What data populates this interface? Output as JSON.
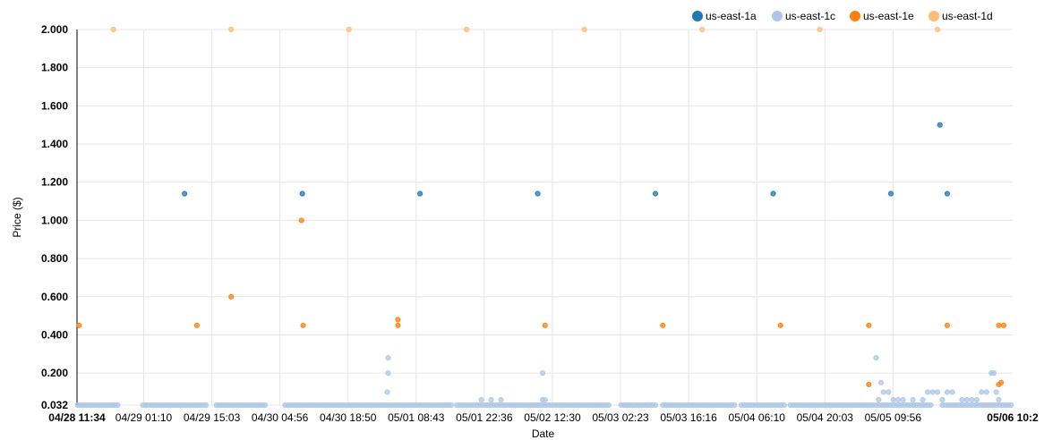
{
  "chart_data": {
    "type": "scatter",
    "xlabel": "Date",
    "ylabel": "Price ($)",
    "ylim": [
      0.032,
      2.0
    ],
    "y_ticks": [
      "0.032",
      "0.200",
      "0.400",
      "0.600",
      "0.800",
      "1.000",
      "1.200",
      "1.400",
      "1.600",
      "1.800",
      "2.000"
    ],
    "y_tick_values": [
      0.032,
      0.2,
      0.4,
      0.6,
      0.8,
      1.0,
      1.2,
      1.4,
      1.6,
      1.8,
      2.0
    ],
    "xlim": [
      "2015-04-28 11:34",
      "2015-05-06 10:20"
    ],
    "x_ticks": [
      {
        "label": "04/28 11:34",
        "t": "2015-04-28 11:34",
        "bold": true
      },
      {
        "label": "04/29 01:10",
        "t": "2015-04-29 01:10"
      },
      {
        "label": "04/29 15:03",
        "t": "2015-04-29 15:03"
      },
      {
        "label": "04/30 04:56",
        "t": "2015-04-30 04:56"
      },
      {
        "label": "04/30 18:50",
        "t": "2015-04-30 18:50"
      },
      {
        "label": "05/01 08:43",
        "t": "2015-05-01 08:43"
      },
      {
        "label": "05/01 22:36",
        "t": "2015-05-01 22:36"
      },
      {
        "label": "05/02 12:30",
        "t": "2015-05-02 12:30"
      },
      {
        "label": "05/03 02:23",
        "t": "2015-05-03 02:23"
      },
      {
        "label": "05/03 16:16",
        "t": "2015-05-03 16:16"
      },
      {
        "label": "05/04 06:10",
        "t": "2015-05-04 06:10"
      },
      {
        "label": "05/04 20:03",
        "t": "2015-05-04 20:03"
      },
      {
        "label": "05/05 09:56",
        "t": "2015-05-05 09:56"
      },
      {
        "label": "05/06 10:2",
        "t": "2015-05-06 10:20",
        "bold": true
      }
    ],
    "grid": true,
    "legend_position": "top-right",
    "series": [
      {
        "name": "us-east-1a",
        "color": "#1f77b4",
        "points": [
          [
            "2015-04-29 09:30",
            1.14
          ],
          [
            "2015-04-30 09:30",
            1.14
          ],
          [
            "2015-05-01 09:30",
            1.14
          ],
          [
            "2015-05-02 09:30",
            1.14
          ],
          [
            "2015-05-03 09:30",
            1.14
          ],
          [
            "2015-05-04 09:30",
            1.14
          ],
          [
            "2015-05-05 09:30",
            1.14
          ],
          [
            "2015-05-05 21:00",
            1.14
          ],
          [
            "2015-05-05 19:30",
            1.5
          ]
        ]
      },
      {
        "name": "us-east-1c",
        "color": "#aec7e8",
        "points": [
          [
            "2015-05-01 03:00",
            0.28
          ],
          [
            "2015-05-01 03:00",
            0.2
          ],
          [
            "2015-05-01 02:50",
            0.1
          ],
          [
            "2015-05-02 10:30",
            0.2
          ],
          [
            "2015-05-02 10:30",
            0.06
          ],
          [
            "2015-05-02 11:00",
            0.06
          ],
          [
            "2015-05-01 22:00",
            0.06
          ],
          [
            "2015-05-02 00:00",
            0.06
          ],
          [
            "2015-05-02 02:00",
            0.06
          ],
          [
            "2015-05-05 06:30",
            0.28
          ],
          [
            "2015-05-05 07:30",
            0.15
          ],
          [
            "2015-05-05 08:00",
            0.1
          ],
          [
            "2015-05-05 09:00",
            0.1
          ],
          [
            "2015-05-05 07:00",
            0.06
          ],
          [
            "2015-05-05 10:00",
            0.06
          ],
          [
            "2015-05-05 11:00",
            0.06
          ],
          [
            "2015-05-05 12:00",
            0.06
          ],
          [
            "2015-05-05 14:00",
            0.06
          ],
          [
            "2015-05-05 16:00",
            0.06
          ],
          [
            "2015-05-05 17:00",
            0.1
          ],
          [
            "2015-05-05 18:00",
            0.1
          ],
          [
            "2015-05-05 19:00",
            0.1
          ],
          [
            "2015-05-05 20:00",
            0.06
          ],
          [
            "2015-05-05 21:00",
            0.1
          ],
          [
            "2015-05-05 22:00",
            0.1
          ],
          [
            "2015-05-06 00:00",
            0.06
          ],
          [
            "2015-05-06 01:00",
            0.06
          ],
          [
            "2015-05-06 02:00",
            0.06
          ],
          [
            "2015-05-06 03:00",
            0.06
          ],
          [
            "2015-05-06 04:00",
            0.1
          ],
          [
            "2015-05-06 05:00",
            0.1
          ],
          [
            "2015-05-06 06:00",
            0.2
          ],
          [
            "2015-05-06 06:30",
            0.2
          ],
          [
            "2015-05-06 07:00",
            0.1
          ],
          [
            "2015-05-06 07:30",
            0.06
          ]
        ]
      },
      {
        "name": "us-east-1e",
        "color": "#ff7f0e",
        "points": [
          [
            "2015-04-28 12:00",
            0.45
          ],
          [
            "2015-04-29 12:00",
            0.45
          ],
          [
            "2015-04-29 19:00",
            0.6
          ],
          [
            "2015-04-30 09:20",
            1.0
          ],
          [
            "2015-04-30 09:40",
            0.45
          ],
          [
            "2015-05-01 05:00",
            0.48
          ],
          [
            "2015-05-01 05:00",
            0.45
          ],
          [
            "2015-05-02 11:00",
            0.45
          ],
          [
            "2015-05-03 11:00",
            0.45
          ],
          [
            "2015-05-04 11:00",
            0.45
          ],
          [
            "2015-05-05 05:00",
            0.14
          ],
          [
            "2015-05-05 05:00",
            0.45
          ],
          [
            "2015-05-05 21:00",
            0.45
          ],
          [
            "2015-05-06 07:30",
            0.45
          ],
          [
            "2015-05-06 08:30",
            0.45
          ],
          [
            "2015-05-06 07:30",
            0.14
          ],
          [
            "2015-05-06 08:00",
            0.15
          ]
        ]
      },
      {
        "name": "us-east-1d",
        "color": "#ffbb78",
        "points": [
          [
            "2015-04-28 19:00",
            2.0
          ],
          [
            "2015-04-29 19:00",
            2.0
          ],
          [
            "2015-04-30 19:00",
            2.0
          ],
          [
            "2015-05-01 19:00",
            2.0
          ],
          [
            "2015-05-02 19:00",
            2.0
          ],
          [
            "2015-05-03 19:00",
            2.0
          ],
          [
            "2015-05-04 19:00",
            2.0
          ],
          [
            "2015-05-05 19:00",
            2.0
          ]
        ]
      }
    ],
    "baseline_band": {
      "series": "us-east-1c",
      "value": 0.032,
      "ranges": [
        [
          "2015-04-28 11:40",
          "2015-04-28 20:00"
        ],
        [
          "2015-04-29 01:00",
          "2015-04-29 14:00"
        ],
        [
          "2015-04-29 16:00",
          "2015-04-30 02:00"
        ],
        [
          "2015-04-30 06:00",
          "2015-05-01 16:00"
        ],
        [
          "2015-05-01 17:00",
          "2015-05-03 00:00"
        ],
        [
          "2015-05-03 02:30",
          "2015-05-03 10:00"
        ],
        [
          "2015-05-03 11:00",
          "2015-05-04 02:00"
        ],
        [
          "2015-05-04 03:00",
          "2015-05-04 12:00"
        ],
        [
          "2015-05-04 13:00",
          "2015-05-05 18:00"
        ],
        [
          "2015-05-05 20:00",
          "2015-05-06 10:20"
        ]
      ]
    }
  }
}
